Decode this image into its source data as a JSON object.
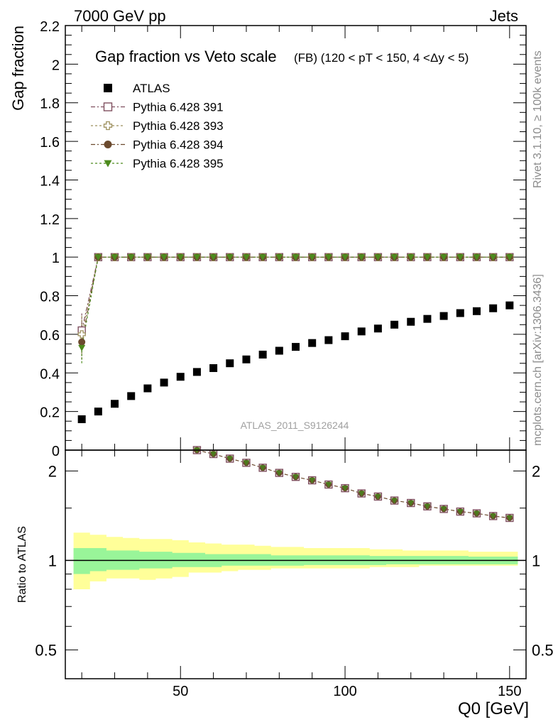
{
  "header": {
    "left": "7000 GeV pp",
    "right": "Jets"
  },
  "side_labels": {
    "rivet": "Rivet 3.1.10, ≥ 100k events",
    "mcplots": "mcplots.cern.ch [arXiv:1306.3436]"
  },
  "chart_data": [
    {
      "type": "scatter",
      "title": "Gap fraction vs Veto scale",
      "subtitle": "(FB) (120 < pT < 150, 4 <Δy < 5)",
      "ylabel": "Gap fraction",
      "xlabel": "",
      "xlim": [
        15,
        155
      ],
      "ylim": [
        0,
        2.2
      ],
      "yticks": [
        "0",
        "0.2",
        "0.4",
        "0.6",
        "0.8",
        "1",
        "1.2",
        "1.4",
        "1.6",
        "1.8",
        "2",
        "2.2"
      ],
      "watermark": "ATLAS_2011_S9126244",
      "legend_position": "top-left",
      "x": [
        20,
        25,
        30,
        35,
        40,
        45,
        50,
        55,
        60,
        65,
        70,
        75,
        80,
        85,
        90,
        95,
        100,
        105,
        110,
        115,
        120,
        125,
        130,
        135,
        140,
        145,
        150
      ],
      "series": [
        {
          "name": "ATLAS",
          "color": "#000000",
          "marker": "filled-square",
          "values": [
            0.16,
            0.2,
            0.24,
            0.28,
            0.32,
            0.35,
            0.38,
            0.405,
            0.425,
            0.45,
            0.47,
            0.495,
            0.515,
            0.535,
            0.555,
            0.57,
            0.59,
            0.615,
            0.63,
            0.65,
            0.665,
            0.68,
            0.695,
            0.71,
            0.72,
            0.735,
            0.75
          ]
        },
        {
          "name": "Pythia 6.428 391",
          "color": "#7f4f5f",
          "marker": "open-square",
          "values": [
            0.62,
            1,
            1,
            1,
            1,
            1,
            1,
            1,
            1,
            1,
            1,
            1,
            1,
            1,
            1,
            1,
            1,
            1,
            1,
            1,
            1,
            1,
            1,
            1,
            1,
            1,
            1
          ]
        },
        {
          "name": "Pythia 6.428 393",
          "color": "#9c8f5c",
          "marker": "open-cross",
          "values": [
            0.6,
            1,
            1,
            1,
            1,
            1,
            1,
            1,
            1,
            1,
            1,
            1,
            1,
            1,
            1,
            1,
            1,
            1,
            1,
            1,
            1,
            1,
            1,
            1,
            1,
            1,
            1
          ]
        },
        {
          "name": "Pythia 6.428 394",
          "color": "#6b4a2e",
          "marker": "filled-circle",
          "values": [
            0.56,
            1,
            1,
            1,
            1,
            1,
            1,
            1,
            1,
            1,
            1,
            1,
            1,
            1,
            1,
            1,
            1,
            1,
            1,
            1,
            1,
            1,
            1,
            1,
            1,
            1,
            1
          ]
        },
        {
          "name": "Pythia 6.428 395",
          "color": "#4c8a1c",
          "marker": "filled-triangle-down",
          "values": [
            0.53,
            1,
            1,
            1,
            1,
            1,
            1,
            1,
            1,
            1,
            1,
            1,
            1,
            1,
            1,
            1,
            1,
            1,
            1,
            1,
            1,
            1,
            1,
            1,
            1,
            1,
            1
          ]
        }
      ]
    },
    {
      "type": "line",
      "ylabel": "Ratio to ATLAS",
      "xlabel": "Q0 [GeV]",
      "xlim": [
        15,
        155
      ],
      "ylim": [
        0.4,
        2.35
      ],
      "log_y": true,
      "yticks": [
        "0.5",
        "1",
        "2"
      ],
      "xticks": [
        "50",
        "100",
        "150"
      ],
      "x": [
        55,
        60,
        65,
        70,
        75,
        80,
        85,
        90,
        95,
        100,
        105,
        110,
        115,
        120,
        125,
        130,
        135,
        140,
        145,
        150
      ],
      "ratio": [
        2.35,
        2.28,
        2.2,
        2.13,
        2.05,
        1.97,
        1.91,
        1.86,
        1.8,
        1.75,
        1.68,
        1.64,
        1.59,
        1.56,
        1.52,
        1.49,
        1.46,
        1.44,
        1.41,
        1.39
      ],
      "band_x_edges": [
        17.5,
        22.5,
        27.5,
        32.5,
        37.5,
        42.5,
        47.5,
        52.5,
        57.5,
        62.5,
        67.5,
        72.5,
        77.5,
        82.5,
        87.5,
        92.5,
        97.5,
        102.5,
        107.5,
        112.5,
        117.5,
        122.5,
        127.5,
        132.5,
        137.5,
        142.5,
        147.5,
        152.5
      ],
      "band_stat_upper": [
        1.1,
        1.1,
        1.08,
        1.08,
        1.07,
        1.07,
        1.06,
        1.06,
        1.05,
        1.05,
        1.05,
        1.05,
        1.04,
        1.04,
        1.04,
        1.04,
        1.04,
        1.04,
        1.035,
        1.035,
        1.035,
        1.035,
        1.035,
        1.035,
        1.03,
        1.03,
        1.03
      ],
      "band_stat_lower": [
        0.9,
        0.92,
        0.93,
        0.93,
        0.94,
        0.94,
        0.95,
        0.95,
        0.95,
        0.96,
        0.96,
        0.96,
        0.96,
        0.96,
        0.965,
        0.965,
        0.965,
        0.965,
        0.965,
        0.97,
        0.97,
        0.97,
        0.97,
        0.97,
        0.97,
        0.97,
        0.97
      ],
      "band_total_upper": [
        1.24,
        1.22,
        1.2,
        1.19,
        1.18,
        1.18,
        1.17,
        1.15,
        1.14,
        1.13,
        1.13,
        1.12,
        1.11,
        1.11,
        1.1,
        1.1,
        1.1,
        1.1,
        1.09,
        1.09,
        1.08,
        1.08,
        1.08,
        1.08,
        1.07,
        1.07,
        1.07
      ],
      "band_total_lower": [
        0.8,
        0.85,
        0.87,
        0.87,
        0.86,
        0.87,
        0.88,
        0.91,
        0.91,
        0.92,
        0.93,
        0.93,
        0.94,
        0.94,
        0.94,
        0.94,
        0.94,
        0.94,
        0.95,
        0.95,
        0.95,
        0.96,
        0.96,
        0.96,
        0.96,
        0.96,
        0.96
      ],
      "band_stat_color": "#99f599",
      "band_total_color": "#ffff99",
      "ratio_color": "#4c7a1c"
    }
  ]
}
